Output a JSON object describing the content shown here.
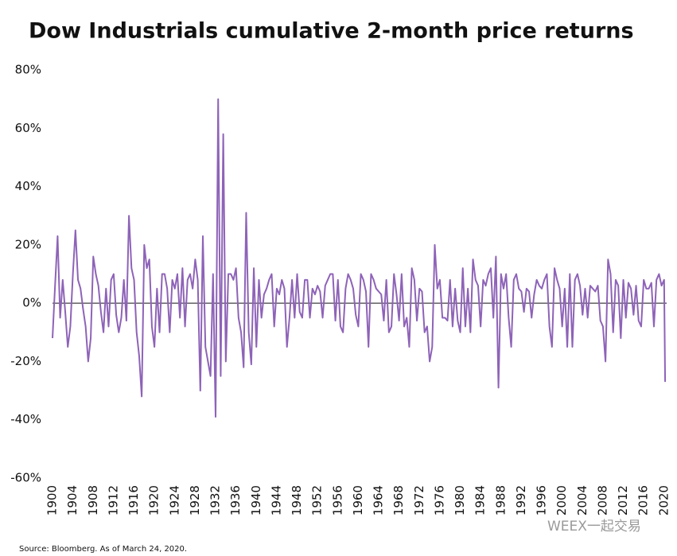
{
  "chart_data": {
    "type": "line",
    "title": "Dow Industrials cumulative 2-month price returns",
    "source": "Source: Bloomberg. As of March 24, 2020.",
    "watermark": "WEEX一起交易",
    "x": [
      1900,
      1900.5,
      1901,
      1901.5,
      1902,
      1902.5,
      1903,
      1903.5,
      1904,
      1904.5,
      1905,
      1905.5,
      1906,
      1906.5,
      1907,
      1907.5,
      1908,
      1908.5,
      1909,
      1909.5,
      1910,
      1910.5,
      1911,
      1911.5,
      1912,
      1912.5,
      1913,
      1913.5,
      1914,
      1914.5,
      1915,
      1915.5,
      1916,
      1916.5,
      1917,
      1917.5,
      1918,
      1918.5,
      1919,
      1919.5,
      1920,
      1920.5,
      1921,
      1921.5,
      1922,
      1922.5,
      1923,
      1923.5,
      1924,
      1924.5,
      1925,
      1925.5,
      1926,
      1926.5,
      1927,
      1927.5,
      1928,
      1928.5,
      1929,
      1929.5,
      1930,
      1930.5,
      1931,
      1931.5,
      1932,
      1932.5,
      1933,
      1933.5,
      1934,
      1934.5,
      1935,
      1935.5,
      1936,
      1936.5,
      1937,
      1937.5,
      1938,
      1938.5,
      1939,
      1939.5,
      1940,
      1940.5,
      1941,
      1941.5,
      1942,
      1942.5,
      1943,
      1943.5,
      1944,
      1944.5,
      1945,
      1945.5,
      1946,
      1946.5,
      1947,
      1947.5,
      1948,
      1948.5,
      1949,
      1949.5,
      1950,
      1950.5,
      1951,
      1951.5,
      1952,
      1952.5,
      1953,
      1953.5,
      1954,
      1954.5,
      1955,
      1955.5,
      1956,
      1956.5,
      1957,
      1957.5,
      1958,
      1958.5,
      1959,
      1959.5,
      1960,
      1960.5,
      1961,
      1961.5,
      1962,
      1962.5,
      1963,
      1963.5,
      1964,
      1964.5,
      1965,
      1965.5,
      1966,
      1966.5,
      1967,
      1967.5,
      1968,
      1968.5,
      1969,
      1969.5,
      1970,
      1970.5,
      1971,
      1971.5,
      1972,
      1972.5,
      1973,
      1973.5,
      1974,
      1974.5,
      1975,
      1975.5,
      1976,
      1976.5,
      1977,
      1977.5,
      1978,
      1978.5,
      1979,
      1979.5,
      1980,
      1980.5,
      1981,
      1981.5,
      1982,
      1982.5,
      1983,
      1983.5,
      1984,
      1984.5,
      1985,
      1985.5,
      1986,
      1986.5,
      1987,
      1987.5,
      1988,
      1988.5,
      1989,
      1989.5,
      1990,
      1990.5,
      1991,
      1991.5,
      1992,
      1992.5,
      1993,
      1993.5,
      1994,
      1994.5,
      1995,
      1995.5,
      1996,
      1996.5,
      1997,
      1997.5,
      1998,
      1998.5,
      1999,
      1999.5,
      2000,
      2000.5,
      2001,
      2001.5,
      2002,
      2002.5,
      2003,
      2003.5,
      2004,
      2004.5,
      2005,
      2005.5,
      2006,
      2006.5,
      2007,
      2007.5,
      2008,
      2008.5,
      2009,
      2009.5,
      2010,
      2010.5,
      2011,
      2011.5,
      2012,
      2012.5,
      2013,
      2013.5,
      2014,
      2014.5,
      2015,
      2015.5,
      2016,
      2016.5,
      2017,
      2017.5,
      2018,
      2018.5,
      2019,
      2019.5,
      2020,
      2020.2
    ],
    "values": [
      -12,
      6,
      23,
      -5,
      8,
      -3,
      -15,
      -8,
      10,
      25,
      8,
      5,
      -2,
      -8,
      -20,
      -12,
      16,
      10,
      6,
      -3,
      -10,
      5,
      -8,
      8,
      10,
      -4,
      -10,
      -5,
      8,
      -6,
      30,
      12,
      8,
      -10,
      -18,
      -32,
      20,
      12,
      15,
      -8,
      -15,
      5,
      -10,
      10,
      10,
      5,
      -10,
      8,
      5,
      10,
      -5,
      12,
      -8,
      8,
      10,
      5,
      15,
      8,
      -30,
      23,
      -15,
      -20,
      -25,
      10,
      -39,
      70,
      -25,
      58,
      -20,
      10,
      10,
      8,
      12,
      -5,
      -10,
      -22,
      31,
      -10,
      -21,
      12,
      -15,
      8,
      -5,
      3,
      5,
      8,
      10,
      -8,
      5,
      3,
      8,
      5,
      -15,
      -5,
      8,
      -5,
      10,
      -3,
      -5,
      8,
      8,
      -5,
      5,
      3,
      6,
      4,
      -5,
      6,
      8,
      10,
      10,
      -6,
      8,
      -8,
      -10,
      5,
      10,
      8,
      5,
      -4,
      -8,
      10,
      8,
      4,
      -15,
      10,
      8,
      5,
      4,
      3,
      -6,
      8,
      -10,
      -8,
      10,
      3,
      -6,
      10,
      -8,
      -5,
      -15,
      12,
      8,
      -6,
      5,
      4,
      -10,
      -8,
      -20,
      -15,
      20,
      5,
      8,
      -5,
      -5,
      -6,
      8,
      -8,
      5,
      -6,
      -10,
      12,
      -8,
      5,
      -10,
      15,
      8,
      6,
      -8,
      8,
      6,
      10,
      12,
      -5,
      16,
      -29,
      10,
      5,
      10,
      -5,
      -15,
      8,
      10,
      5,
      4,
      -3,
      5,
      4,
      -5,
      3,
      8,
      6,
      5,
      8,
      10,
      -8,
      -15,
      12,
      8,
      5,
      -8,
      5,
      -15,
      10,
      -15,
      8,
      10,
      6,
      -4,
      5,
      -5,
      6,
      5,
      4,
      6,
      -6,
      -8,
      -20,
      15,
      10,
      -10,
      8,
      6,
      -12,
      8,
      -5,
      7,
      5,
      -4,
      6,
      -6,
      -8,
      8,
      5,
      5,
      7,
      -8,
      8,
      10,
      6,
      8,
      -27
    ],
    "color": "#8e63b8",
    "xlim": [
      1900,
      2020.5
    ],
    "ylim": [
      -60,
      80
    ],
    "xticks": [
      1900,
      1904,
      1908,
      1912,
      1916,
      1920,
      1924,
      1928,
      1932,
      1936,
      1940,
      1944,
      1948,
      1952,
      1956,
      1960,
      1964,
      1968,
      1972,
      1976,
      1980,
      1984,
      1988,
      1992,
      1996,
      2000,
      2004,
      2008,
      2012,
      2016,
      2020
    ],
    "yticks": [
      {
        "value": -60,
        "label": "-60%"
      },
      {
        "value": -40,
        "label": "-40%"
      },
      {
        "value": -20,
        "label": "-20%"
      },
      {
        "value": 0,
        "label": "0%"
      },
      {
        "value": 20,
        "label": "20%"
      },
      {
        "value": 40,
        "label": "40%"
      },
      {
        "value": 60,
        "label": "60%"
      },
      {
        "value": 80,
        "label": "80%"
      }
    ],
    "zero_line": true
  }
}
